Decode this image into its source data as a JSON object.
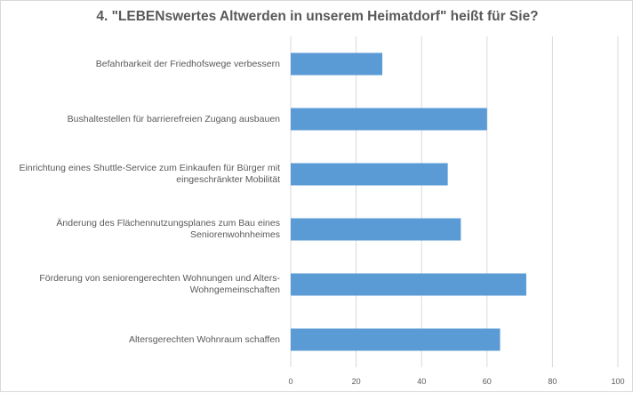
{
  "title": "4. \"LEBENswertes Altwerden in unserem Heimatdorf\" heißt für Sie?",
  "chart_data": {
    "type": "bar",
    "orientation": "horizontal",
    "title": "4. \"LEBENswertes Altwerden in unserem Heimatdorf\" heißt für Sie?",
    "xlabel": "",
    "ylabel": "",
    "categories": [
      "Befahrbarkeit der Friedhofswege verbessern",
      "Bushaltestellen für barrierefreien Zugang ausbauen",
      "Einrichtung eines Shuttle-Service zum Einkaufen für Bürger mit\neingeschränkter Mobilität",
      "Änderung des Flächennutzungsplanes zum Bau eines\nSeniorenwohnheimes",
      "Förderung von seniorengerechten Wohnungen und Alters-\nWohngemeinschaften",
      "Altersgerechten Wohnraum schaffen"
    ],
    "values": [
      28,
      60,
      48,
      52,
      72,
      64
    ],
    "xlim": [
      0,
      100
    ],
    "xticks": [
      0,
      20,
      40,
      60,
      80,
      100
    ],
    "xtick_labels": [
      "0",
      "20",
      "40",
      "60",
      "80",
      "100"
    ],
    "grid": true,
    "legend": "none",
    "bar_color": "#5b9bd5",
    "grid_color": "#d9d9d9"
  }
}
